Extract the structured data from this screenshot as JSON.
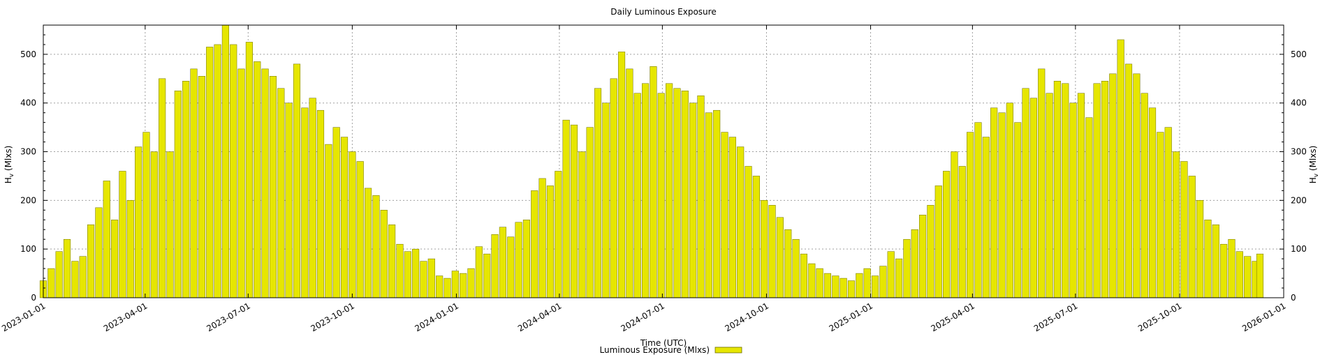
{
  "chart_data": {
    "type": "bar",
    "title": "Daily Luminous Exposure",
    "xlabel": "Time (UTC)",
    "ylabel_left": {
      "main": "H",
      "sub": "v",
      "unit": " (Mlxs)"
    },
    "ylabel_right": {
      "main": "H",
      "sub": "v",
      "unit": " (Mlxs)"
    },
    "xlim": [
      "2023-01-01",
      "2026-01-01"
    ],
    "ylim": [
      0,
      560
    ],
    "x_ticks": [
      "2023-01-01",
      "2023-04-01",
      "2023-07-01",
      "2023-10-01",
      "2024-01-01",
      "2024-04-01",
      "2024-07-01",
      "2024-10-01",
      "2025-01-01",
      "2025-04-01",
      "2025-07-01",
      "2025-10-01",
      "2026-01-01"
    ],
    "y_ticks": [
      0,
      100,
      200,
      300,
      400,
      500
    ],
    "grid": true,
    "legend": {
      "placement": "bottom-center",
      "label": "Luminous Exposure (Mlxs)"
    },
    "bar_color": "#e6e600",
    "series": [
      {
        "name": "Luminous Exposure (Mlxs)",
        "points": [
          [
            "2023-01-01",
            35
          ],
          [
            "2023-01-08",
            60
          ],
          [
            "2023-01-15",
            95
          ],
          [
            "2023-01-22",
            120
          ],
          [
            "2023-01-29",
            75
          ],
          [
            "2023-02-05",
            85
          ],
          [
            "2023-02-12",
            150
          ],
          [
            "2023-02-19",
            185
          ],
          [
            "2023-02-26",
            240
          ],
          [
            "2023-03-05",
            160
          ],
          [
            "2023-03-12",
            260
          ],
          [
            "2023-03-19",
            200
          ],
          [
            "2023-03-26",
            310
          ],
          [
            "2023-04-02",
            340
          ],
          [
            "2023-04-09",
            300
          ],
          [
            "2023-04-16",
            450
          ],
          [
            "2023-04-23",
            300
          ],
          [
            "2023-04-30",
            425
          ],
          [
            "2023-05-07",
            445
          ],
          [
            "2023-05-14",
            470
          ],
          [
            "2023-05-21",
            455
          ],
          [
            "2023-05-28",
            515
          ],
          [
            "2023-06-04",
            520
          ],
          [
            "2023-06-11",
            560
          ],
          [
            "2023-06-18",
            520
          ],
          [
            "2023-06-25",
            470
          ],
          [
            "2023-07-02",
            525
          ],
          [
            "2023-07-09",
            485
          ],
          [
            "2023-07-16",
            470
          ],
          [
            "2023-07-23",
            455
          ],
          [
            "2023-07-30",
            430
          ],
          [
            "2023-08-06",
            400
          ],
          [
            "2023-08-13",
            480
          ],
          [
            "2023-08-20",
            390
          ],
          [
            "2023-08-27",
            410
          ],
          [
            "2023-09-03",
            385
          ],
          [
            "2023-09-10",
            315
          ],
          [
            "2023-09-17",
            350
          ],
          [
            "2023-09-24",
            330
          ],
          [
            "2023-10-01",
            300
          ],
          [
            "2023-10-08",
            280
          ],
          [
            "2023-10-15",
            225
          ],
          [
            "2023-10-22",
            210
          ],
          [
            "2023-10-29",
            180
          ],
          [
            "2023-11-05",
            150
          ],
          [
            "2023-11-12",
            110
          ],
          [
            "2023-11-19",
            95
          ],
          [
            "2023-11-26",
            100
          ],
          [
            "2023-12-03",
            75
          ],
          [
            "2023-12-10",
            80
          ],
          [
            "2023-12-17",
            45
          ],
          [
            "2023-12-24",
            40
          ],
          [
            "2023-12-31",
            55
          ],
          [
            "2024-01-07",
            50
          ],
          [
            "2024-01-14",
            60
          ],
          [
            "2024-01-21",
            105
          ],
          [
            "2024-01-28",
            90
          ],
          [
            "2024-02-04",
            130
          ],
          [
            "2024-02-11",
            145
          ],
          [
            "2024-02-18",
            125
          ],
          [
            "2024-02-25",
            155
          ],
          [
            "2024-03-03",
            160
          ],
          [
            "2024-03-10",
            220
          ],
          [
            "2024-03-17",
            245
          ],
          [
            "2024-03-24",
            230
          ],
          [
            "2024-03-31",
            260
          ],
          [
            "2024-04-07",
            365
          ],
          [
            "2024-04-14",
            355
          ],
          [
            "2024-04-21",
            300
          ],
          [
            "2024-04-28",
            350
          ],
          [
            "2024-05-05",
            430
          ],
          [
            "2024-05-12",
            400
          ],
          [
            "2024-05-19",
            450
          ],
          [
            "2024-05-26",
            505
          ],
          [
            "2024-06-02",
            470
          ],
          [
            "2024-06-09",
            420
          ],
          [
            "2024-06-16",
            440
          ],
          [
            "2024-06-23",
            475
          ],
          [
            "2024-06-30",
            420
          ],
          [
            "2024-07-07",
            440
          ],
          [
            "2024-07-14",
            430
          ],
          [
            "2024-07-21",
            425
          ],
          [
            "2024-07-28",
            400
          ],
          [
            "2024-08-04",
            415
          ],
          [
            "2024-08-11",
            380
          ],
          [
            "2024-08-18",
            385
          ],
          [
            "2024-08-25",
            340
          ],
          [
            "2024-09-01",
            330
          ],
          [
            "2024-09-08",
            310
          ],
          [
            "2024-09-15",
            270
          ],
          [
            "2024-09-22",
            250
          ],
          [
            "2024-09-29",
            200
          ],
          [
            "2024-10-06",
            190
          ],
          [
            "2024-10-13",
            165
          ],
          [
            "2024-10-20",
            140
          ],
          [
            "2024-10-27",
            120
          ],
          [
            "2024-11-03",
            90
          ],
          [
            "2024-11-10",
            70
          ],
          [
            "2024-11-17",
            60
          ],
          [
            "2024-11-24",
            50
          ],
          [
            "2024-12-01",
            45
          ],
          [
            "2024-12-08",
            40
          ],
          [
            "2024-12-15",
            35
          ],
          [
            "2024-12-22",
            50
          ],
          [
            "2024-12-29",
            60
          ],
          [
            "2025-01-05",
            45
          ],
          [
            "2025-01-12",
            65
          ],
          [
            "2025-01-19",
            95
          ],
          [
            "2025-01-26",
            80
          ],
          [
            "2025-02-02",
            120
          ],
          [
            "2025-02-09",
            140
          ],
          [
            "2025-02-16",
            170
          ],
          [
            "2025-02-23",
            190
          ],
          [
            "2025-03-02",
            230
          ],
          [
            "2025-03-09",
            260
          ],
          [
            "2025-03-16",
            300
          ],
          [
            "2025-03-23",
            270
          ],
          [
            "2025-03-30",
            340
          ],
          [
            "2025-04-06",
            360
          ],
          [
            "2025-04-13",
            330
          ],
          [
            "2025-04-20",
            390
          ],
          [
            "2025-04-27",
            380
          ],
          [
            "2025-05-04",
            400
          ],
          [
            "2025-05-11",
            360
          ],
          [
            "2025-05-18",
            430
          ],
          [
            "2025-05-25",
            410
          ],
          [
            "2025-06-01",
            470
          ],
          [
            "2025-06-08",
            420
          ],
          [
            "2025-06-15",
            445
          ],
          [
            "2025-06-22",
            440
          ],
          [
            "2025-06-29",
            400
          ],
          [
            "2025-07-06",
            420
          ],
          [
            "2025-07-13",
            370
          ],
          [
            "2025-07-20",
            440
          ],
          [
            "2025-07-27",
            445
          ],
          [
            "2025-08-03",
            460
          ],
          [
            "2025-08-10",
            530
          ],
          [
            "2025-08-17",
            480
          ],
          [
            "2025-08-24",
            460
          ],
          [
            "2025-08-31",
            420
          ],
          [
            "2025-09-07",
            390
          ],
          [
            "2025-09-14",
            340
          ],
          [
            "2025-09-21",
            350
          ],
          [
            "2025-09-28",
            300
          ],
          [
            "2025-10-05",
            280
          ],
          [
            "2025-10-12",
            250
          ],
          [
            "2025-10-19",
            200
          ],
          [
            "2025-10-26",
            160
          ],
          [
            "2025-11-02",
            150
          ],
          [
            "2025-11-09",
            110
          ],
          [
            "2025-11-16",
            120
          ],
          [
            "2025-11-23",
            95
          ],
          [
            "2025-11-30",
            85
          ],
          [
            "2025-12-07",
            75
          ],
          [
            "2025-12-11",
            90
          ]
        ]
      }
    ]
  }
}
